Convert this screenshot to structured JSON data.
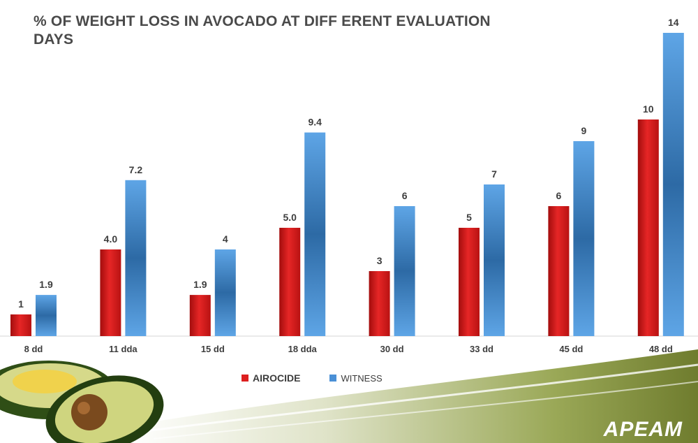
{
  "chart_data": {
    "type": "bar",
    "title": "% OF WEIGHT LOSS IN AVOCADO AT DIFF ERENT EVALUATION DAYS",
    "categories": [
      "8 dd",
      "11 dda",
      "15 dd",
      "18 dda",
      "30 dd",
      "33 dd",
      "45 dd",
      "48 dd"
    ],
    "series": [
      {
        "name": "AIROCIDE",
        "values": [
          1,
          4.0,
          1.9,
          5.0,
          3,
          5,
          6,
          10
        ],
        "labels": [
          "1",
          "4.0",
          "1.9",
          "5.0",
          "3",
          "5",
          "6",
          "10"
        ],
        "color": "#dd1f1f"
      },
      {
        "name": "WITNESS",
        "values": [
          1.9,
          7.2,
          4,
          9.4,
          6,
          7,
          9,
          14
        ],
        "labels": [
          "1.9",
          "7.2",
          "4",
          "9.4",
          "6",
          "7",
          "9",
          "14"
        ],
        "color": "#4a90d6"
      }
    ],
    "ylim": [
      0,
      14
    ],
    "grid": false,
    "legend": "bottom"
  },
  "branding": {
    "logo": "APEAM"
  },
  "colors": {
    "airocide": "#dd1f1f",
    "witness": "#4a90d6",
    "footer_green": "#8c9a46"
  }
}
